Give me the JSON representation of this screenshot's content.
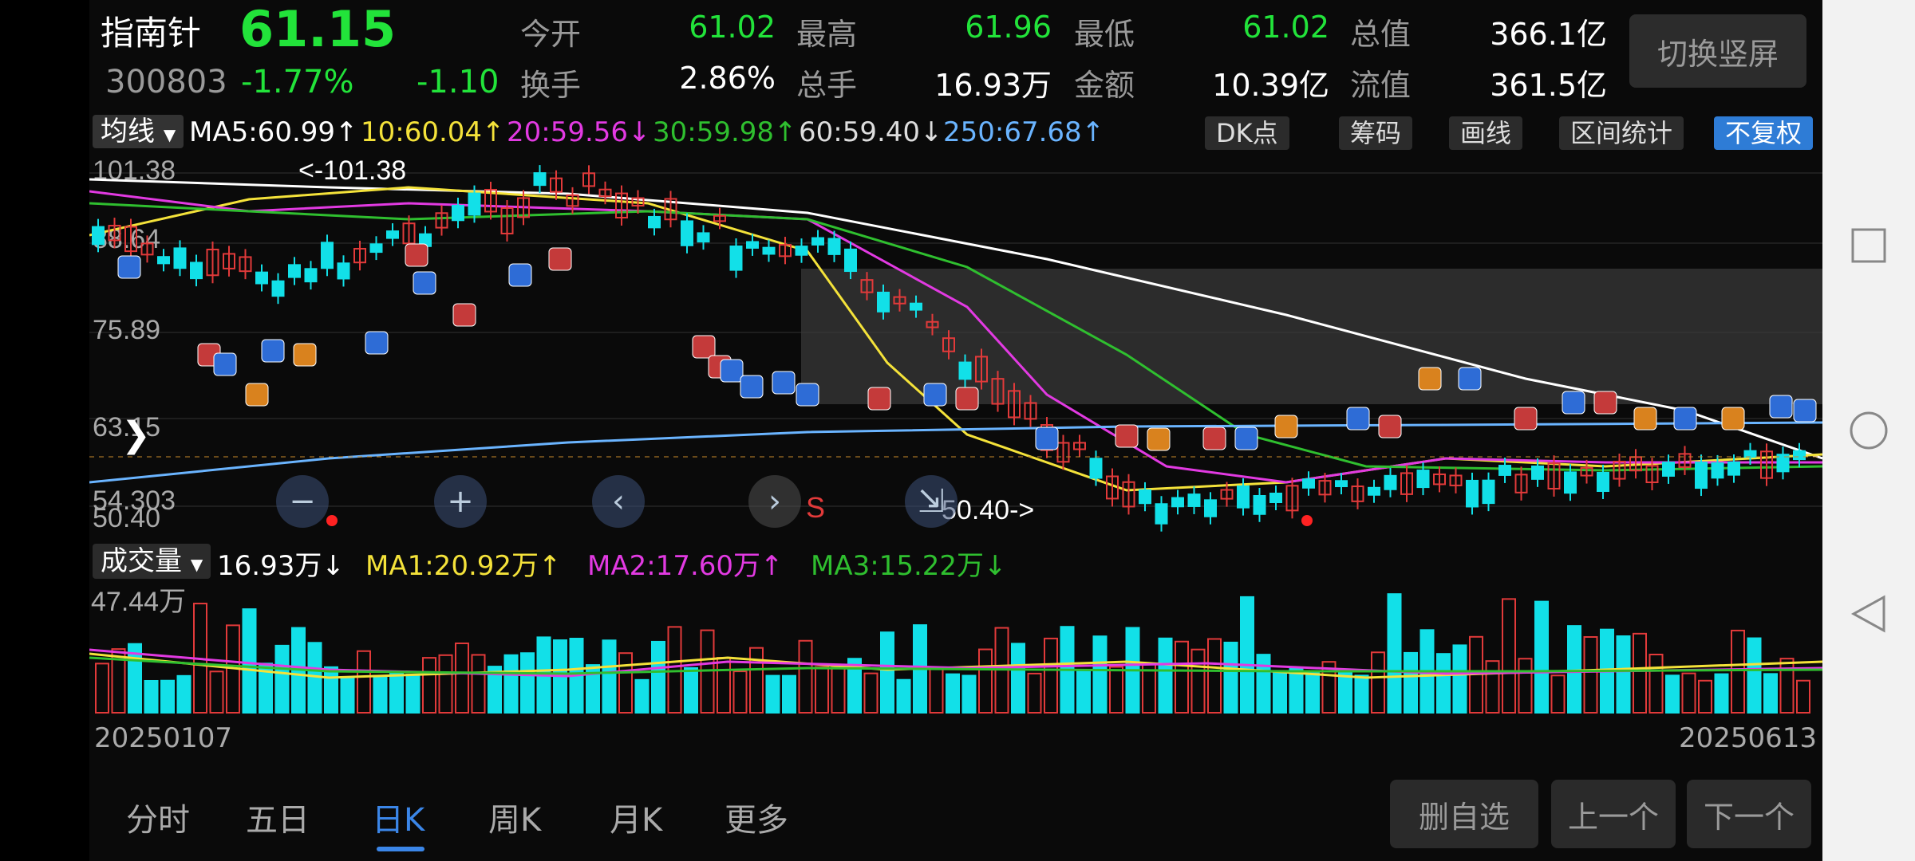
{
  "header": {
    "name": "指南针",
    "price": "61.15",
    "code": "300803",
    "pct": "-1.77%",
    "chg": "-1.10",
    "stats": [
      {
        "label": "今开",
        "value": "61.02",
        "color": "#22e33a"
      },
      {
        "label": "最高",
        "value": "61.96",
        "color": "#22e33a"
      },
      {
        "label": "最低",
        "value": "61.02",
        "color": "#22e33a"
      },
      {
        "label": "总值",
        "value": "366.1亿",
        "color": "#ffffff"
      },
      {
        "label": "换手",
        "value": "2.86%",
        "color": "#ffffff"
      },
      {
        "label": "总手",
        "value": "16.93万",
        "color": "#ffffff"
      },
      {
        "label": "金额",
        "value": "10.39亿",
        "color": "#ffffff"
      },
      {
        "label": "流值",
        "value": "361.5亿",
        "color": "#ffffff"
      }
    ],
    "switch_label": "切换竖屏"
  },
  "ma_bar": {
    "select": "均线",
    "items": [
      {
        "text": "MA5:60.99↑",
        "color": "#ffffff"
      },
      {
        "text": "10:60.04↑",
        "color": "#f4e23a"
      },
      {
        "text": "20:59.56↓",
        "color": "#e23ae2"
      },
      {
        "text": "30:59.98↑",
        "color": "#2fbf2f"
      },
      {
        "text": "60:59.40↓",
        "color": "#dddddd"
      },
      {
        "text": "250:67.68↑",
        "color": "#6ab4ff"
      }
    ],
    "tools": [
      "DK点",
      "筹码",
      "画线",
      "区间统计",
      "不复权"
    ]
  },
  "kchart": {
    "y_labels": [
      "101.38",
      "88.64",
      "75.89",
      "63.15",
      "54.303",
      "50.40"
    ],
    "high_label": "<-101.38",
    "low_label": "50.40->",
    "s_label": "S"
  },
  "vol_bar": {
    "select": "成交量",
    "items": [
      {
        "text": "16.93万↓",
        "color": "#ffffff"
      },
      {
        "text": "MA1:20.92万↑",
        "color": "#f4e23a"
      },
      {
        "text": "MA2:17.60万↑",
        "color": "#e23ae2"
      },
      {
        "text": "MA3:15.22万↓",
        "color": "#2fbf2f"
      }
    ],
    "max_label": "47.44万"
  },
  "dates": {
    "start": "20250107",
    "end": "20250613"
  },
  "tabs": [
    "分时",
    "五日",
    "日K",
    "周K",
    "月K",
    "更多"
  ],
  "buttons": [
    "删自选",
    "上一个",
    "下一个"
  ],
  "colors": {
    "up": "#e23a3a",
    "down": "#12e0e8",
    "green": "#22e33a",
    "accent": "#2e7cd6"
  }
}
